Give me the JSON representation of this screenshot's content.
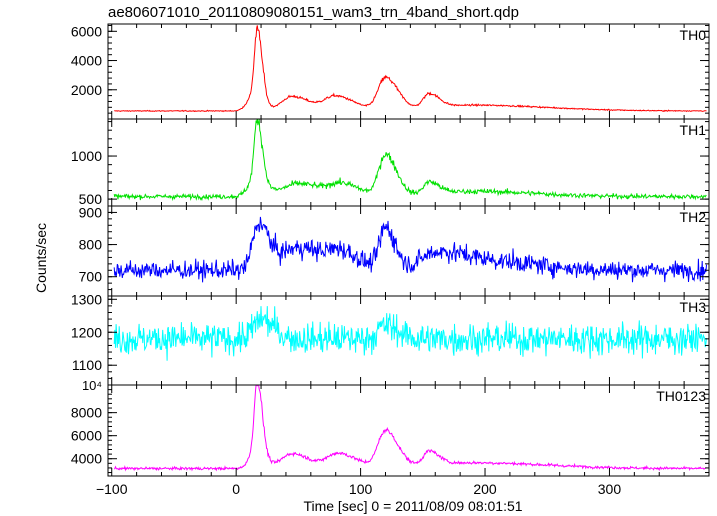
{
  "chart_data": {
    "type": "line",
    "title": "ae806071010_20110809080151_wam3_trn_4band_short.qdp",
    "xlabel": "Time [sec] 0 = 2011/08/09 08:01:51",
    "ylabel": "Counts/sec",
    "xlim": [
      -103,
      380
    ],
    "xticks": [
      -100,
      0,
      100,
      200,
      300
    ],
    "xtick_labels": [
      "−100",
      "0",
      "100",
      "200",
      "300"
    ],
    "grid": false,
    "panels": [
      {
        "name": "TH0",
        "color": "#ff0000",
        "ylim": [
          0,
          6500
        ],
        "yticks": [
          2000,
          4000,
          6000
        ],
        "ytick_labels": [
          "2000",
          "4000",
          "6000"
        ],
        "baseline": 550,
        "noise": 0.04,
        "features": [
          {
            "t": 17,
            "a": 4800,
            "w": 4
          },
          {
            "t": 13,
            "a": 900,
            "w": 8
          },
          {
            "t": 45,
            "a": 1000,
            "w": 14
          },
          {
            "t": 80,
            "a": 1000,
            "w": 15
          },
          {
            "t": 120,
            "a": 2200,
            "w": 10
          },
          {
            "t": 155,
            "a": 950,
            "w": 8
          },
          {
            "t": 190,
            "a": 400,
            "w": 60
          }
        ]
      },
      {
        "name": "TH1",
        "color": "#00e000",
        "ylim": [
          420,
          1430
        ],
        "yticks": [
          500,
          1000
        ],
        "ytick_labels": [
          "500",
          "1000"
        ],
        "baseline": 530,
        "noise": 0.035,
        "features": [
          {
            "t": 17,
            "a": 700,
            "w": 4
          },
          {
            "t": 15,
            "a": 200,
            "w": 9
          },
          {
            "t": 50,
            "a": 150,
            "w": 20
          },
          {
            "t": 85,
            "a": 130,
            "w": 15
          },
          {
            "t": 120,
            "a": 480,
            "w": 9
          },
          {
            "t": 155,
            "a": 140,
            "w": 8
          },
          {
            "t": 190,
            "a": 60,
            "w": 50
          }
        ]
      },
      {
        "name": "TH2",
        "color": "#0000ff",
        "ylim": [
          640,
          920
        ],
        "yticks": [
          700,
          800,
          900
        ],
        "ytick_labels": [
          "700",
          "800",
          "900"
        ],
        "baseline": 720,
        "noise": 0.028,
        "features": [
          {
            "t": 18,
            "a": 140,
            "w": 8
          },
          {
            "t": 50,
            "a": 70,
            "w": 25
          },
          {
            "t": 85,
            "a": 40,
            "w": 15
          },
          {
            "t": 120,
            "a": 130,
            "w": 8
          },
          {
            "t": 160,
            "a": 50,
            "w": 20
          },
          {
            "t": 200,
            "a": 30,
            "w": 40
          }
        ]
      },
      {
        "name": "TH3",
        "color": "#00ffff",
        "ylim": [
          1040,
          1310
        ],
        "yticks": [
          1100,
          1200,
          1300
        ],
        "ytick_labels": [
          "1100",
          "1200",
          "1300"
        ],
        "baseline": 1180,
        "noise": 0.028,
        "features": [
          {
            "t": 20,
            "a": 60,
            "w": 10
          },
          {
            "t": 120,
            "a": 40,
            "w": 10
          }
        ]
      },
      {
        "name": "TH0123",
        "color": "#ff00ff",
        "ylim": [
          2500,
          10400
        ],
        "yticks": [
          4000,
          6000,
          8000
        ],
        "ytick_labels": [
          "4000",
          "6000",
          "8000"
        ],
        "exponent_label": "10⁴",
        "baseline": 3150,
        "noise": 0.025,
        "features": [
          {
            "t": 17,
            "a": 6300,
            "w": 4
          },
          {
            "t": 15,
            "a": 1400,
            "w": 8
          },
          {
            "t": 45,
            "a": 1300,
            "w": 14
          },
          {
            "t": 82,
            "a": 1300,
            "w": 15
          },
          {
            "t": 120,
            "a": 3200,
            "w": 10
          },
          {
            "t": 155,
            "a": 1200,
            "w": 8
          },
          {
            "t": 190,
            "a": 500,
            "w": 60
          }
        ]
      }
    ]
  }
}
